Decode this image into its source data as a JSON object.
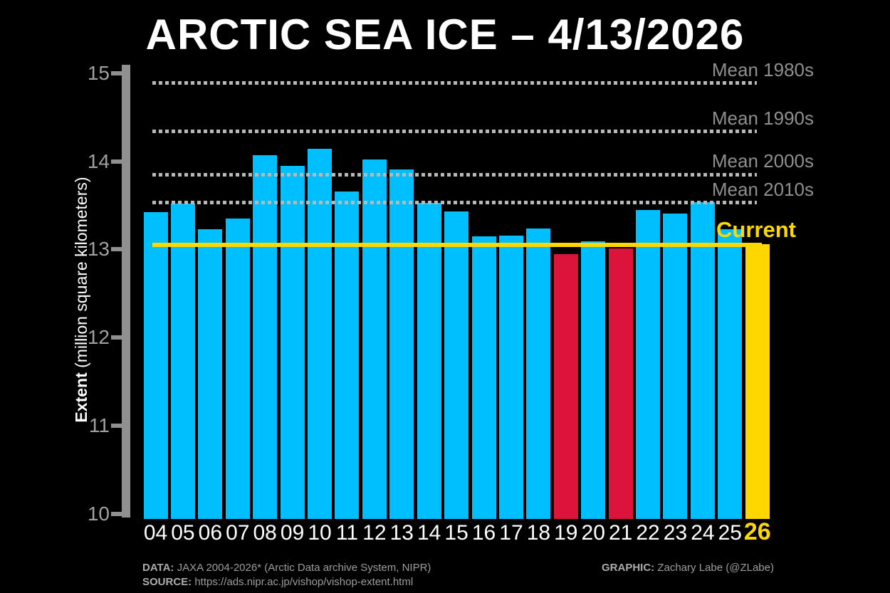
{
  "title": "ARCTIC SEA ICE – 4/13/2026",
  "y_axis": {
    "label_bold": "Extent",
    "label_rest": " (million square kilometers)",
    "ticks": [
      15,
      14,
      13,
      12,
      11,
      10
    ]
  },
  "chart_data": {
    "type": "bar",
    "title": "ARCTIC SEA ICE – 4/13/2026",
    "xlabel": "",
    "ylabel": "Extent (million square kilometers)",
    "ylim": [
      10,
      15
    ],
    "grid": false,
    "categories": [
      "04",
      "05",
      "06",
      "07",
      "08",
      "09",
      "10",
      "11",
      "12",
      "13",
      "14",
      "15",
      "16",
      "17",
      "18",
      "19",
      "20",
      "21",
      "22",
      "23",
      "24",
      "25",
      "26"
    ],
    "values": [
      13.42,
      13.52,
      13.23,
      13.35,
      14.07,
      13.95,
      14.14,
      13.66,
      14.02,
      13.91,
      13.53,
      13.43,
      13.15,
      13.16,
      13.24,
      12.95,
      13.09,
      13.01,
      13.45,
      13.41,
      13.54,
      13.23,
      13.06
    ],
    "bar_color_roles": [
      "blue",
      "blue",
      "blue",
      "blue",
      "blue",
      "blue",
      "blue",
      "blue",
      "blue",
      "blue",
      "blue",
      "blue",
      "blue",
      "blue",
      "blue",
      "red",
      "blue",
      "red",
      "blue",
      "blue",
      "blue",
      "blue",
      "gold"
    ],
    "reference_lines": [
      {
        "label": "Mean 1980s",
        "value": 14.89
      },
      {
        "label": "Mean 1990s",
        "value": 14.34
      },
      {
        "label": "Mean 2000s",
        "value": 13.85
      },
      {
        "label": "Mean 2010s",
        "value": 13.53
      }
    ],
    "current_line": {
      "label": "Current",
      "value": 13.05
    }
  },
  "colors": {
    "background": "#000000",
    "bar_blue": "#00BFFF",
    "bar_red": "#DC143C",
    "bar_gold": "#FFD700",
    "current_line": "#FFD700",
    "axis_gray": "#909090",
    "dash_gray": "#B8B8B8",
    "mean_label_gray": "#8F8F8F",
    "tick_label_gray": "#A0A0A0",
    "x_label_white": "#FFFFFF"
  },
  "footer": {
    "data_label": "DATA:",
    "data_text": " JAXA 2004-2026* (Arctic Data archive System, NIPR)",
    "source_label": "SOURCE:",
    "source_text": " https://ads.nipr.ac.jp/vishop/vishop-extent.html",
    "graphic_label": "GRAPHIC:",
    "graphic_text": " Zachary Labe (@ZLabe)"
  }
}
